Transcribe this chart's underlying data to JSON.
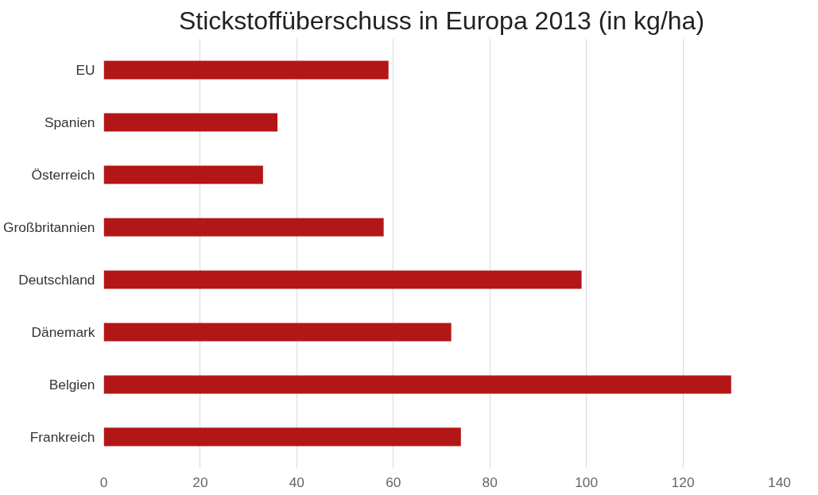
{
  "chart_data": {
    "type": "bar",
    "orientation": "horizontal",
    "title": "Stickstoffüberschuss in Europa 2013 (in kg/ha)",
    "categories": [
      "EU",
      "Spanien",
      "Österreich",
      "Großbritannien",
      "Deutschland",
      "Dänemark",
      "Belgien",
      "Frankreich"
    ],
    "values": [
      59,
      36,
      33,
      58,
      99,
      72,
      130,
      74
    ],
    "color": "#b31616",
    "xlim": [
      0,
      140
    ],
    "xticks": [
      0,
      20,
      40,
      60,
      80,
      100,
      120,
      140
    ],
    "grid": "x"
  }
}
